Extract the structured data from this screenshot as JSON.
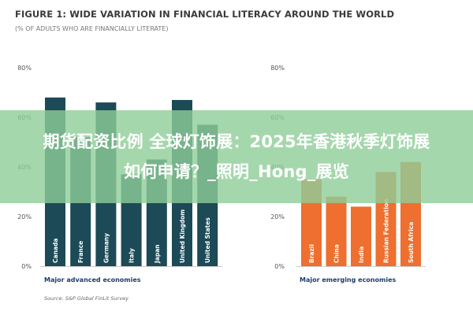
{
  "header": {
    "title": "FIGURE 1: WIDE VARIATION IN FINANCIAL LITERACY AROUND THE WORLD",
    "subtitle": "(% OF ADULTS WHO ARE FINANCIALLY LITERATE)"
  },
  "source": "Source: S&P Global FinLit Survey",
  "overlay": {
    "line1": "期货配资比例 全球灯饰展：2025年香港秋季灯饰展",
    "line2": "如何申请？_照明_Hong_展览"
  },
  "colors": {
    "advanced_bar": "#1c4a57",
    "emerging_bar": "#ee6f2f",
    "axis_text": "#555555",
    "group_label": "#1c3d6e"
  },
  "chart_data": [
    {
      "type": "bar",
      "group_label": "Major advanced economies",
      "categories": [
        "Canada",
        "France",
        "Germany",
        "Italy",
        "Japan",
        "United Kingdom",
        "United States"
      ],
      "values": [
        68,
        52,
        66,
        37,
        43,
        67,
        57
      ],
      "ylim": [
        0,
        80
      ],
      "yticks": [
        "0%",
        "20%",
        "40%",
        "60%",
        "80%"
      ]
    },
    {
      "type": "bar",
      "group_label": "Major emerging economies",
      "categories": [
        "Brazil",
        "China",
        "India",
        "Russian Federation",
        "South Africa"
      ],
      "values": [
        35,
        28,
        24,
        38,
        42
      ],
      "ylim": [
        0,
        80
      ],
      "yticks": [
        "0%",
        "20%",
        "40%",
        "60%",
        "80%"
      ]
    }
  ]
}
